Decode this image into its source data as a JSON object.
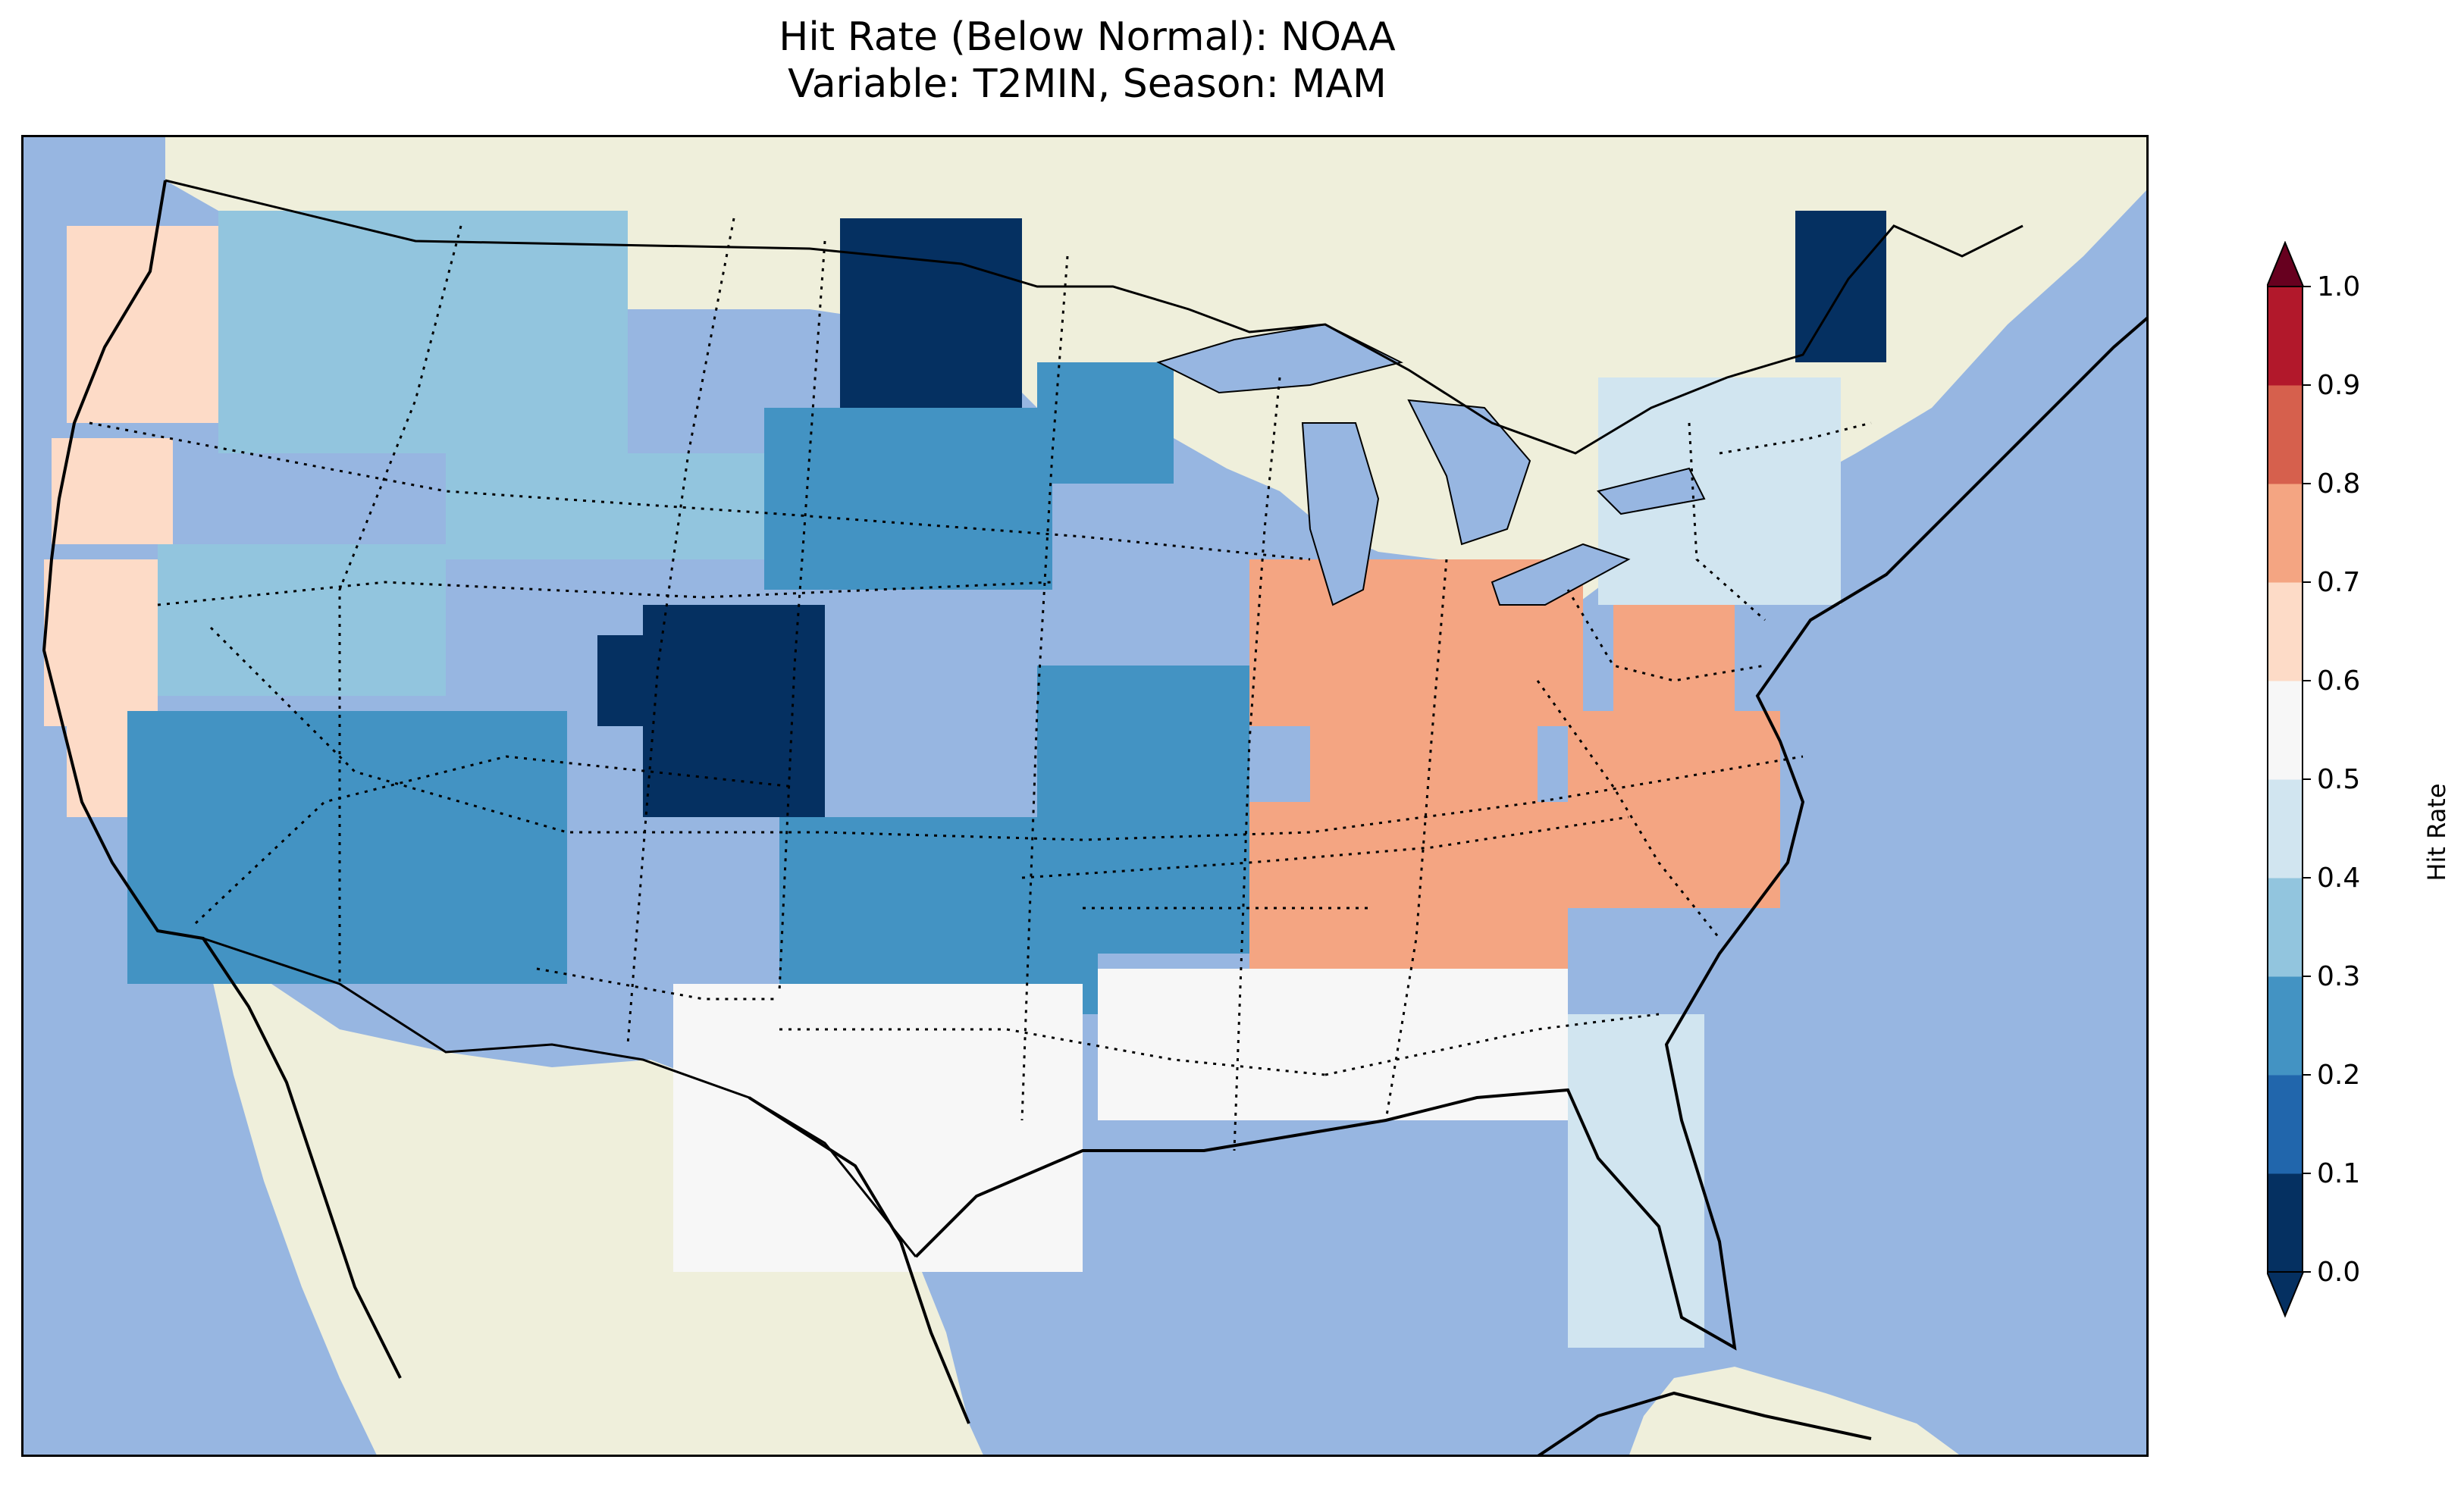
{
  "title": {
    "line1": "Hit Rate (Below Normal): NOAA",
    "line2": "Variable: T2MIN, Season: MAM"
  },
  "map": {
    "projection": "lambert-conformal-conus",
    "ocean_color": "#97b6e1",
    "land_color": "#efefdb",
    "lake_color": "#97b6e1",
    "regions": [
      {
        "name": "pacific-northwest-coast",
        "class_index": 6
      },
      {
        "name": "california-central-coast",
        "class_index": 6
      },
      {
        "name": "northern-rockies",
        "class_index": 3
      },
      {
        "name": "north-dakota",
        "class_index": 0
      },
      {
        "name": "south-dakota",
        "class_index": 2
      },
      {
        "name": "colorado-southeast",
        "class_index": 0
      },
      {
        "name": "southwest",
        "class_index": 2
      },
      {
        "name": "southern-plains",
        "class_index": 2
      },
      {
        "name": "ohio-valley",
        "class_index": 7
      },
      {
        "name": "carolinas",
        "class_index": 7
      },
      {
        "name": "tennessee-valley",
        "class_index": 7
      },
      {
        "name": "gulf-coast",
        "class_index": 5
      },
      {
        "name": "texas",
        "class_index": 5
      },
      {
        "name": "florida",
        "class_index": 4
      },
      {
        "name": "new-england",
        "class_index": 4
      },
      {
        "name": "northern-maine",
        "class_index": 0
      }
    ]
  },
  "colorbar": {
    "label": "Hit Rate",
    "ticks": [
      "0.0",
      "0.1",
      "0.2",
      "0.3",
      "0.4",
      "0.5",
      "0.6",
      "0.7",
      "0.8",
      "0.9",
      "1.0"
    ],
    "colors": [
      "#053061",
      "#2166ac",
      "#4393c3",
      "#92c5de",
      "#d1e5f0",
      "#f7f7f7",
      "#fddbc7",
      "#f4a582",
      "#d6604d",
      "#b2182b"
    ],
    "extend_under_color": "#053061",
    "extend_over_color": "#67001f",
    "vmin": 0.0,
    "vmax": 1.0
  }
}
